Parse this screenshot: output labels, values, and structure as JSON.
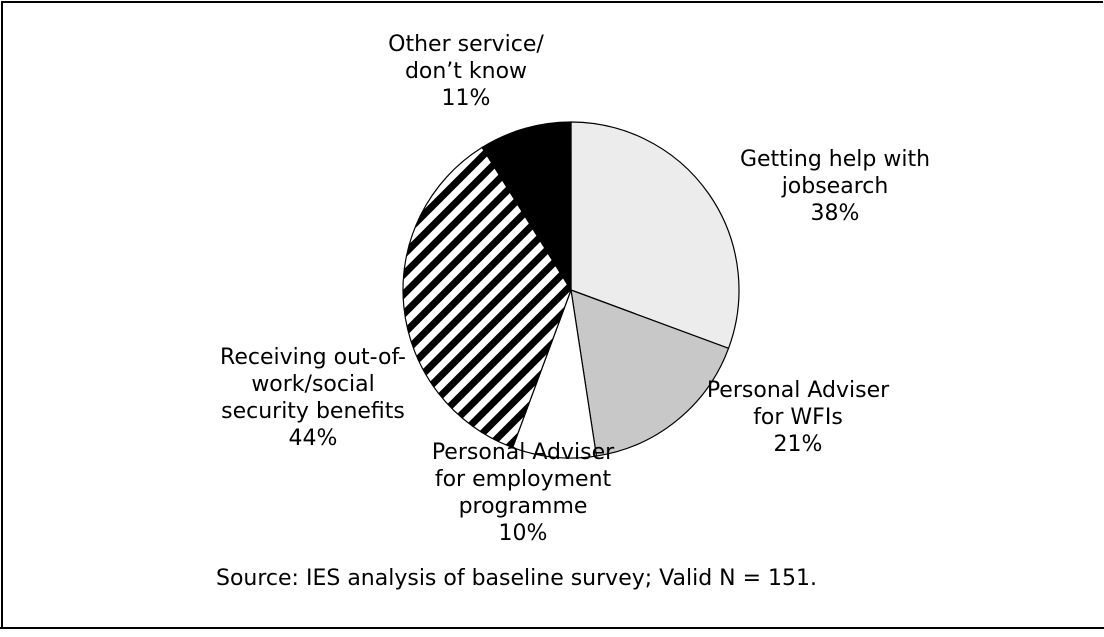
{
  "chart_data": {
    "type": "pie",
    "slices": [
      {
        "label_lines": [
          "Getting help with",
          "jobsearch"
        ],
        "pct_label": "38%",
        "value": 38,
        "fill": "#ececec",
        "pattern": "solid"
      },
      {
        "label_lines": [
          "Personal Adviser",
          "for WFIs"
        ],
        "pct_label": "21%",
        "value": 21,
        "fill": "#c8c8c8",
        "pattern": "solid"
      },
      {
        "label_lines": [
          "Personal Adviser",
          "for employment",
          "programme"
        ],
        "pct_label": "10%",
        "value": 10,
        "fill": "#ffffff",
        "pattern": "solid"
      },
      {
        "label_lines": [
          "Receiving out-of-",
          "work/social",
          "security benefits"
        ],
        "pct_label": "44%",
        "value": 44,
        "fill": "#000000",
        "pattern": "diagonal-stripes"
      },
      {
        "label_lines": [
          "Other service/",
          "don’t know"
        ],
        "pct_label": "11%",
        "value": 11,
        "fill": "#000000",
        "pattern": "solid"
      }
    ],
    "start": "12 o'clock",
    "direction": "clockwise"
  },
  "source_note": "Source: IES analysis of baseline survey; Valid N = 151."
}
